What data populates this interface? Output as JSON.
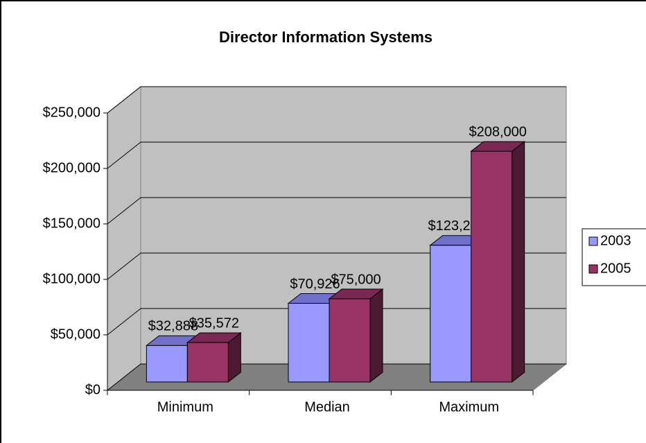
{
  "chart_data": {
    "type": "bar3d",
    "title": "Director Information Systems",
    "categories": [
      "Minimum",
      "Median",
      "Maximum"
    ],
    "series": [
      {
        "name": "2003",
        "color": "#9999ff",
        "values": [
          32888,
          70926,
          123248
        ],
        "value_labels": [
          "$32,888",
          "$70,926",
          "$123,248"
        ]
      },
      {
        "name": "2005",
        "color": "#993366",
        "values": [
          35572,
          75000,
          208000
        ],
        "value_labels": [
          "$35,572",
          "$75,000",
          "$208,000"
        ]
      }
    ],
    "ylim": [
      0,
      250000
    ],
    "yticks": [
      {
        "value": 0,
        "label": "$0"
      },
      {
        "value": 50000,
        "label": "$50,000"
      },
      {
        "value": 100000,
        "label": "$100,000"
      },
      {
        "value": 150000,
        "label": "$150,000"
      },
      {
        "value": 200000,
        "label": "$200,000"
      },
      {
        "value": 250000,
        "label": "$250,000"
      }
    ],
    "grid": true,
    "legend": "right"
  }
}
